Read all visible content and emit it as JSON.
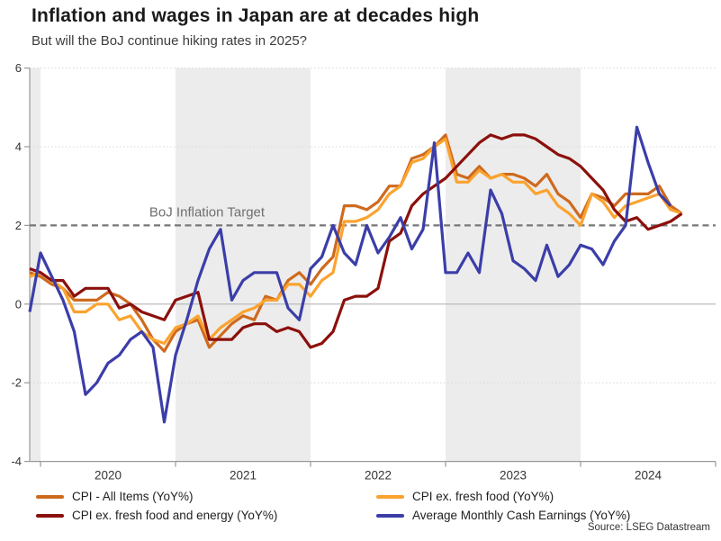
{
  "header": {
    "title": "Inflation and wages in Japan are at decades high",
    "subtitle": "But will the BoJ continue hiking rates in 2025?"
  },
  "source_note": "Source: LSEG Datastream",
  "chart_data": {
    "type": "line",
    "title": "Inflation and wages in Japan are at decades high",
    "subtitle": "But will the BoJ continue hiking rates in 2025?",
    "x_unit": "month",
    "x_start": "2019-12",
    "x_end": "2024-10",
    "x_tick_labels": [
      "2020",
      "2021",
      "2022",
      "2023",
      "2024"
    ],
    "ylim": [
      -4,
      6
    ],
    "y_ticks": [
      6,
      4,
      2,
      0,
      -2,
      -4
    ],
    "grid": "horizontal-dotted",
    "legend_position": "bottom",
    "target_line": {
      "value": 2,
      "label": "BoJ Inflation Target"
    },
    "shaded_periods": [
      {
        "from": "2019-12",
        "to": "2020-01"
      },
      {
        "from": "2021-01",
        "to": "2022-01"
      },
      {
        "from": "2023-01",
        "to": "2024-01"
      }
    ],
    "series": [
      {
        "name": "CPI - All Items (YoY%)",
        "color": "#CE6A1E",
        "start": "2019-12",
        "values": [
          0.8,
          0.7,
          0.5,
          0.4,
          0.1,
          0.1,
          0.1,
          0.3,
          0.2,
          0.0,
          -0.4,
          -0.9,
          -1.2,
          -0.7,
          -0.5,
          -0.4,
          -1.1,
          -0.8,
          -0.5,
          -0.3,
          -0.4,
          0.2,
          0.1,
          0.6,
          0.8,
          0.5,
          0.9,
          1.2,
          2.5,
          2.5,
          2.4,
          2.6,
          3.0,
          3.0,
          3.7,
          3.8,
          4.0,
          4.3,
          3.3,
          3.2,
          3.5,
          3.2,
          3.3,
          3.3,
          3.2,
          3.0,
          3.3,
          2.8,
          2.6,
          2.2,
          2.8,
          2.7,
          2.5,
          2.8,
          2.8,
          2.8,
          3.0,
          2.5,
          2.3
        ]
      },
      {
        "name": "CPI ex. fresh food (YoY%)",
        "color": "#FBA32F",
        "start": "2019-12",
        "values": [
          0.7,
          0.8,
          0.6,
          0.4,
          -0.2,
          -0.2,
          0.0,
          0.0,
          -0.4,
          -0.3,
          -0.7,
          -0.9,
          -1.0,
          -0.6,
          -0.5,
          -0.3,
          -0.9,
          -0.6,
          -0.4,
          -0.2,
          -0.1,
          0.1,
          0.1,
          0.5,
          0.5,
          0.2,
          0.6,
          0.8,
          2.1,
          2.1,
          2.2,
          2.4,
          2.8,
          3.0,
          3.6,
          3.7,
          4.0,
          4.2,
          3.1,
          3.1,
          3.4,
          3.2,
          3.3,
          3.1,
          3.1,
          2.8,
          2.9,
          2.5,
          2.3,
          2.0,
          2.8,
          2.6,
          2.2,
          2.5,
          2.6,
          2.7,
          2.8,
          2.4,
          2.3
        ]
      },
      {
        "name": "CPI ex. fresh food and energy (YoY%)",
        "color": "#8B100C",
        "start": "2019-12",
        "values": [
          0.9,
          0.8,
          0.6,
          0.6,
          0.2,
          0.4,
          0.4,
          0.4,
          -0.1,
          0.0,
          -0.2,
          -0.3,
          -0.4,
          0.1,
          0.2,
          0.3,
          -0.9,
          -0.9,
          -0.9,
          -0.6,
          -0.5,
          -0.5,
          -0.7,
          -0.6,
          -0.7,
          -1.1,
          -1.0,
          -0.7,
          0.1,
          0.2,
          0.2,
          0.4,
          1.6,
          1.8,
          2.5,
          2.8,
          3.0,
          3.2,
          3.5,
          3.8,
          4.1,
          4.3,
          4.2,
          4.3,
          4.3,
          4.2,
          4.0,
          3.8,
          3.7,
          3.5,
          3.2,
          2.9,
          2.4,
          2.1,
          2.2,
          1.9,
          2.0,
          2.1,
          2.3
        ]
      },
      {
        "name": "Average Monthly Cash Earnings (YoY%)",
        "color": "#3B3EA8",
        "start": "2019-12",
        "values": [
          -0.2,
          1.3,
          0.7,
          0.1,
          -0.7,
          -2.3,
          -2.0,
          -1.5,
          -1.3,
          -0.9,
          -0.7,
          -1.1,
          -3.0,
          -1.3,
          -0.4,
          0.6,
          1.4,
          1.9,
          0.1,
          0.6,
          0.8,
          0.8,
          0.8,
          -0.1,
          -0.4,
          0.9,
          1.2,
          2.0,
          1.3,
          1.0,
          2.0,
          1.3,
          1.7,
          2.2,
          1.4,
          1.9,
          4.1,
          0.8,
          0.8,
          1.3,
          0.8,
          2.9,
          2.3,
          1.1,
          0.9,
          0.6,
          1.5,
          0.7,
          1.0,
          1.5,
          1.4,
          1.0,
          1.6,
          2.0,
          4.5,
          3.6,
          2.8,
          2.5
        ]
      }
    ]
  }
}
